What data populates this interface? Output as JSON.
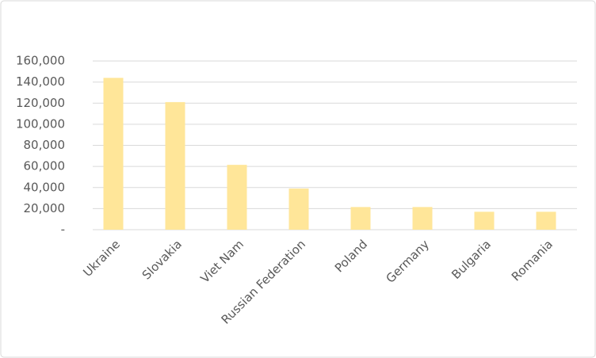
{
  "chart_data": {
    "type": "bar",
    "categories": [
      "Ukraine",
      "Slovakia",
      "Viet Nam",
      "Russian Federation",
      "Poland",
      "Germany",
      "Bulgaria",
      "Romania"
    ],
    "values": [
      144000,
      121000,
      61500,
      39000,
      21500,
      21500,
      17000,
      17000
    ],
    "color": "#ffe699",
    "ylim": [
      0,
      160000
    ],
    "yticks": [
      {
        "value": 0,
        "label": "-"
      },
      {
        "value": 20000,
        "label": "20,000"
      },
      {
        "value": 40000,
        "label": "40,000"
      },
      {
        "value": 60000,
        "label": "60,000"
      },
      {
        "value": 80000,
        "label": "80,000"
      },
      {
        "value": 100000,
        "label": "100,000"
      },
      {
        "value": 120000,
        "label": "120,000"
      },
      {
        "value": 140000,
        "label": "140,000"
      },
      {
        "value": 160000,
        "label": "160,000"
      }
    ],
    "grid": true
  }
}
